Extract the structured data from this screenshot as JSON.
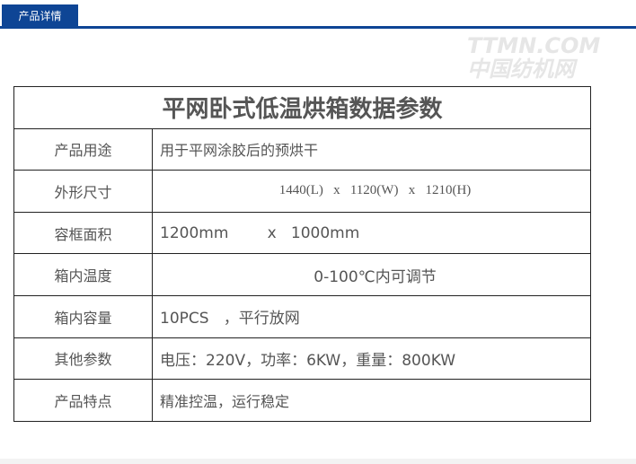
{
  "tab": {
    "label": "产品详情"
  },
  "table": {
    "title": "平网卧式低温烘箱数据参数",
    "rows": [
      {
        "label": "产品用途",
        "value": "用于平网涂胶后的预烘干"
      },
      {
        "label": "外形尺寸",
        "value": "1440(L)   x   1120(W)   x   1210(H)"
      },
      {
        "label": "容框面积",
        "value": "1200mm        x   1000mm"
      },
      {
        "label": "箱内温度",
        "value": "0-100℃内可调节"
      },
      {
        "label": "箱内容量",
        "value": "10PCS   ，平行放网"
      },
      {
        "label": "其他参数",
        "value": "电压：220V，功率：6KW，重量：800KW"
      },
      {
        "label": "产品特点",
        "value": "精准控温，运行稳定"
      }
    ]
  },
  "watermark": {
    "line1": "TTMN.COM",
    "line2": "中国纺机网"
  },
  "colors": {
    "accent": "#0e4595"
  }
}
